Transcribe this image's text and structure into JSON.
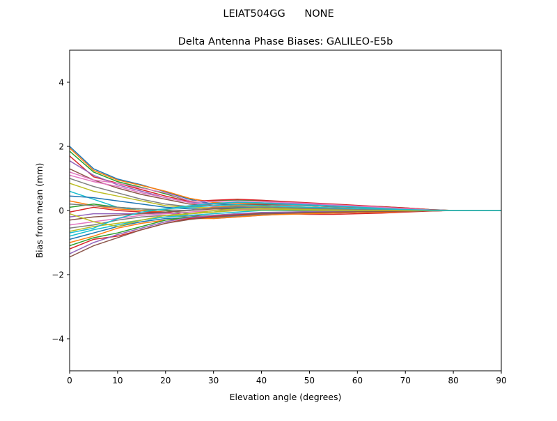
{
  "chart_data": {
    "type": "line",
    "suptitle": "LEIAT504GG      NONE",
    "title": "Delta Antenna Phase Biases: GALILEO-E5b",
    "xlabel": "Elevation angle (degrees)",
    "ylabel": "Bias from mean (mm)",
    "xlim": [
      0,
      90
    ],
    "ylim": [
      -5,
      5
    ],
    "xticks": [
      0,
      10,
      20,
      30,
      40,
      50,
      60,
      70,
      80,
      90
    ],
    "yticks": [
      -4,
      -2,
      0,
      2,
      4
    ],
    "ytick_labels": [
      "−4",
      "−2",
      "0",
      "2",
      "4"
    ],
    "grid": false,
    "legend": "none",
    "colors": [
      "#1f77b4",
      "#ff7f0e",
      "#2ca02c",
      "#d62728",
      "#9467bd",
      "#8c564b",
      "#e377c2",
      "#7f7f7f",
      "#bcbd22",
      "#17becf"
    ],
    "x": [
      0,
      5,
      10,
      15,
      20,
      25,
      30,
      35,
      40,
      45,
      50,
      55,
      60,
      65,
      70,
      75,
      80,
      85,
      90
    ],
    "series": [
      {
        "values": [
          2.0,
          1.3,
          0.98,
          0.8,
          0.58,
          0.35,
          0.2,
          0.18,
          0.15,
          0.12,
          0.1,
          0.08,
          0.06,
          0.05,
          0.03,
          0.01,
          0,
          0,
          0
        ]
      },
      {
        "values": [
          1.95,
          1.25,
          0.95,
          0.78,
          0.6,
          0.38,
          0.25,
          0.22,
          0.2,
          0.18,
          0.15,
          0.12,
          0.1,
          0.08,
          0.05,
          0.02,
          0,
          0,
          0
        ]
      },
      {
        "values": [
          1.85,
          1.2,
          0.9,
          0.72,
          0.52,
          0.3,
          0.3,
          0.32,
          0.3,
          0.26,
          0.22,
          0.18,
          0.15,
          0.12,
          0.08,
          0.03,
          0,
          0,
          0
        ]
      },
      {
        "values": [
          1.7,
          1.05,
          0.85,
          0.65,
          0.45,
          0.28,
          0.32,
          0.35,
          0.32,
          0.28,
          0.24,
          0.2,
          0.16,
          0.12,
          0.08,
          0.03,
          0,
          0,
          0
        ]
      },
      {
        "values": [
          1.55,
          1.1,
          0.8,
          0.6,
          0.4,
          0.25,
          0.22,
          0.25,
          0.24,
          0.22,
          0.2,
          0.17,
          0.14,
          0.1,
          0.06,
          0.02,
          0,
          0,
          0
        ]
      },
      {
        "values": [
          1.3,
          0.95,
          0.7,
          0.5,
          0.35,
          0.2,
          0.15,
          0.18,
          0.18,
          0.17,
          0.15,
          0.12,
          0.1,
          0.08,
          0.05,
          0.02,
          0,
          0,
          0
        ]
      },
      {
        "values": [
          1.1,
          0.9,
          0.75,
          0.55,
          0.4,
          0.25,
          0.12,
          0.1,
          0.1,
          0.08,
          0.06,
          0.05,
          0.04,
          0.03,
          0.02,
          0.01,
          0,
          0,
          0
        ]
      },
      {
        "values": [
          1.0,
          0.75,
          0.55,
          0.35,
          0.2,
          0.12,
          0.2,
          0.25,
          0.22,
          0.18,
          0.15,
          0.12,
          0.1,
          0.07,
          0.04,
          0.01,
          0,
          0,
          0
        ]
      },
      {
        "values": [
          0.85,
          0.6,
          0.45,
          0.3,
          0.15,
          0.1,
          0.08,
          0.1,
          0.12,
          0.1,
          0.08,
          0.07,
          0.05,
          0.04,
          0.02,
          0.01,
          0,
          0,
          0
        ]
      },
      {
        "values": [
          0.6,
          0.35,
          0.1,
          0,
          0.05,
          0.15,
          0.22,
          0.26,
          0.24,
          0.2,
          0.17,
          0.14,
          0.11,
          0.08,
          0.05,
          0.02,
          0,
          0,
          0
        ]
      },
      {
        "values": [
          0.45,
          0.4,
          0.3,
          0.2,
          0.1,
          0.05,
          0.05,
          0.08,
          0.1,
          0.08,
          0.06,
          0.05,
          0.04,
          0.03,
          0.02,
          0.01,
          0,
          0,
          0
        ]
      },
      {
        "values": [
          0.3,
          0.15,
          0.05,
          0,
          -0.05,
          0,
          0.1,
          0.15,
          0.15,
          0.12,
          0.1,
          0.08,
          0.06,
          0.05,
          0.03,
          0.01,
          0,
          0,
          0
        ]
      },
      {
        "values": [
          0.1,
          0.2,
          0.1,
          0.05,
          0,
          -0.1,
          -0.05,
          0.02,
          0.05,
          0.04,
          0.03,
          0.02,
          0.02,
          0.01,
          0.01,
          0,
          0,
          0,
          0
        ]
      },
      {
        "values": [
          -0.05,
          0.1,
          0.0,
          -0.05,
          -0.05,
          -0.15,
          -0.2,
          -0.15,
          -0.1,
          -0.1,
          -0.12,
          -0.12,
          -0.1,
          -0.08,
          -0.05,
          -0.02,
          0,
          0,
          0
        ]
      },
      {
        "values": [
          -0.2,
          -0.1,
          -0.1,
          -0.1,
          -0.08,
          -0.15,
          -0.25,
          -0.2,
          -0.15,
          -0.12,
          -0.1,
          -0.08,
          -0.06,
          -0.05,
          -0.03,
          -0.01,
          0,
          0,
          0
        ]
      },
      {
        "values": [
          -0.3,
          -0.2,
          -0.15,
          -0.1,
          -0.05,
          0,
          0.05,
          0.05,
          0.02,
          0,
          -0.02,
          -0.03,
          -0.03,
          -0.02,
          -0.01,
          0,
          0,
          0,
          0
        ]
      },
      {
        "values": [
          -0.45,
          -0.35,
          -0.25,
          -0.15,
          -0.1,
          -0.05,
          0,
          0.02,
          0.03,
          0.02,
          0.01,
          0.01,
          0,
          0,
          0,
          0,
          0,
          0,
          0
        ]
      },
      {
        "values": [
          -0.55,
          -0.45,
          -0.3,
          -0.2,
          -0.15,
          -0.2,
          -0.22,
          -0.18,
          -0.12,
          -0.1,
          -0.08,
          -0.07,
          -0.06,
          -0.05,
          -0.03,
          -0.01,
          0,
          0,
          0
        ]
      },
      {
        "values": [
          -0.65,
          -0.5,
          -0.4,
          -0.3,
          -0.2,
          -0.1,
          0,
          0.05,
          0.06,
          0.05,
          0.04,
          0.03,
          0.02,
          0.02,
          0.01,
          0,
          0,
          0,
          0
        ]
      },
      {
        "values": [
          -0.8,
          -0.6,
          -0.45,
          -0.3,
          -0.2,
          -0.15,
          -0.1,
          -0.05,
          0,
          0,
          0,
          0,
          0,
          0,
          0,
          0,
          0,
          0,
          0
        ]
      },
      {
        "values": [
          -0.9,
          -0.7,
          -0.5,
          -0.35,
          -0.25,
          -0.22,
          -0.2,
          -0.15,
          -0.1,
          -0.08,
          -0.06,
          -0.05,
          -0.04,
          -0.03,
          -0.02,
          -0.01,
          0,
          0,
          0
        ]
      },
      {
        "values": [
          -1.0,
          -0.8,
          -0.55,
          -0.4,
          -0.3,
          -0.25,
          -0.25,
          -0.2,
          -0.15,
          -0.12,
          -0.1,
          -0.08,
          -0.06,
          -0.05,
          -0.03,
          -0.01,
          0,
          0,
          0
        ]
      },
      {
        "values": [
          -1.1,
          -0.85,
          -0.7,
          -0.5,
          -0.3,
          -0.2,
          -0.15,
          -0.1,
          -0.08,
          -0.06,
          -0.05,
          -0.04,
          -0.03,
          -0.02,
          -0.01,
          0,
          0,
          0,
          0
        ]
      },
      {
        "values": [
          -1.2,
          -0.9,
          -0.8,
          -0.6,
          -0.4,
          -0.25,
          -0.18,
          -0.12,
          -0.1,
          -0.08,
          -0.06,
          -0.05,
          -0.04,
          -0.03,
          -0.02,
          -0.01,
          0,
          0,
          0
        ]
      },
      {
        "values": [
          -1.35,
          -1.0,
          -0.75,
          -0.55,
          -0.35,
          -0.22,
          -0.15,
          -0.1,
          -0.06,
          -0.05,
          -0.04,
          -0.03,
          -0.02,
          -0.02,
          -0.01,
          0,
          0,
          0,
          0
        ]
      },
      {
        "values": [
          -1.45,
          -1.1,
          -0.85,
          -0.6,
          -0.4,
          -0.28,
          -0.2,
          -0.15,
          -0.1,
          -0.08,
          -0.06,
          -0.05,
          -0.04,
          -0.03,
          -0.02,
          -0.01,
          0,
          0,
          0
        ]
      },
      {
        "values": [
          1.2,
          0.95,
          0.85,
          0.7,
          0.55,
          0.3,
          0.28,
          0.3,
          0.28,
          0.25,
          0.22,
          0.18,
          0.14,
          0.1,
          0.06,
          0.02,
          0,
          0,
          0
        ]
      },
      {
        "values": [
          0.2,
          0.15,
          0.1,
          0.05,
          0.02,
          0,
          0.08,
          0.12,
          0.1,
          0.08,
          0.06,
          0.05,
          0.04,
          0.03,
          0.02,
          0.01,
          0,
          0,
          0
        ]
      },
      {
        "values": [
          -0.1,
          -0.35,
          -0.5,
          -0.3,
          -0.15,
          -0.1,
          -0.05,
          0,
          0.02,
          0.02,
          0.01,
          0,
          0,
          0,
          0,
          0,
          0,
          0,
          0
        ]
      },
      {
        "values": [
          -0.7,
          -0.55,
          -0.25,
          -0.05,
          0.05,
          0.1,
          0.15,
          0.18,
          0.15,
          0.12,
          0.1,
          0.08,
          0.06,
          0.05,
          0.03,
          0.01,
          0,
          0,
          0
        ]
      }
    ]
  }
}
